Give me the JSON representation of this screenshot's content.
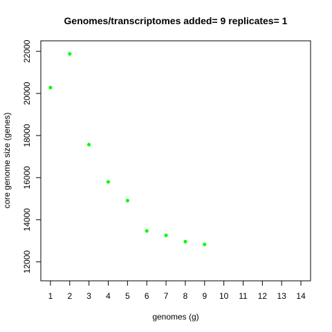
{
  "chart_data": {
    "type": "scatter",
    "title": "Genomes/transcriptomes added= 9  replicates= 1",
    "xlabel": "genomes (g)",
    "ylabel": "core genome size (genes)",
    "xlim": [
      0.5,
      14.5
    ],
    "ylim": [
      11100,
      22500
    ],
    "x_ticks": [
      1,
      2,
      3,
      4,
      5,
      6,
      7,
      8,
      9,
      10,
      11,
      12,
      13,
      14
    ],
    "y_ticks": [
      12000,
      14000,
      16000,
      18000,
      20000,
      22000
    ],
    "grid": false,
    "series": [
      {
        "color": "#00ff00",
        "points": [
          {
            "x": 1,
            "y": 20280
          },
          {
            "x": 2,
            "y": 21880
          },
          {
            "x": 3,
            "y": 17570
          },
          {
            "x": 4,
            "y": 15800
          },
          {
            "x": 5,
            "y": 14910
          },
          {
            "x": 6,
            "y": 13470
          },
          {
            "x": 7,
            "y": 13260
          },
          {
            "x": 8,
            "y": 12960
          },
          {
            "x": 9,
            "y": 12830
          }
        ]
      }
    ]
  }
}
